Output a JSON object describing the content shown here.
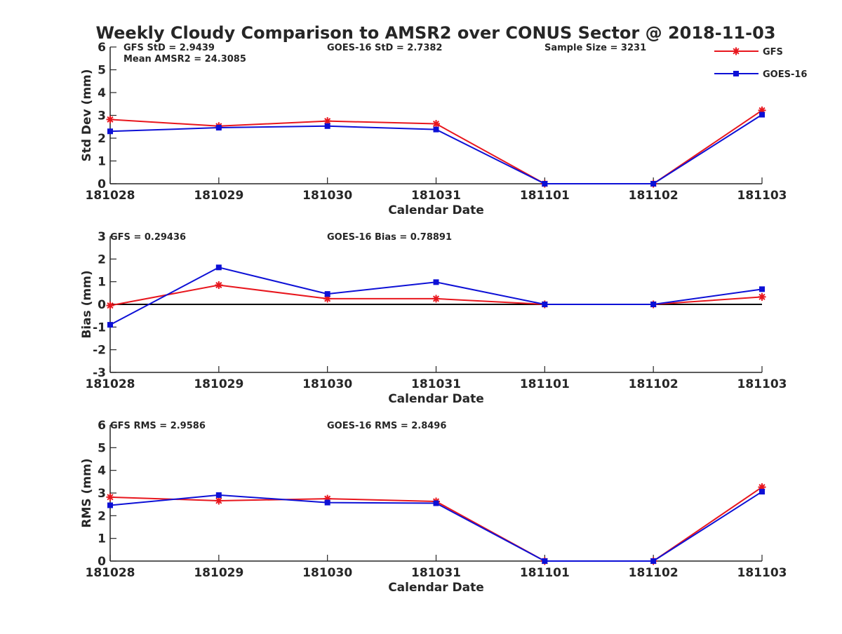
{
  "title": "Weekly Cloudy Comparison to AMSR2 over CONUS Sector @ 2018-11-03",
  "colors": {
    "gfs": "#e8161d",
    "goes": "#0d10d6",
    "axis": "#262626",
    "zero": "#000000"
  },
  "legend": {
    "placement": "top-right",
    "items": [
      {
        "label": "GFS",
        "color": "#e8161d",
        "marker": "asterisk"
      },
      {
        "label": "GOES-16",
        "color": "#0d10d6",
        "marker": "square"
      }
    ]
  },
  "chart_data": [
    {
      "type": "line",
      "xlabel": "Calendar Date",
      "ylabel": "Std Dev (mm)",
      "categories": [
        "181028",
        "181029",
        "181030",
        "181031",
        "181101",
        "181102",
        "181103"
      ],
      "ylim": [
        0,
        6
      ],
      "yticks": [
        0,
        1,
        2,
        3,
        4,
        5,
        6
      ],
      "zero_line": false,
      "annotations": [
        "GFS StD = 2.9439",
        "Mean AMSR2 = 24.3085",
        "GOES-16 StD = 2.7382",
        "Sample Size = 3231"
      ],
      "series": [
        {
          "name": "GFS",
          "values": [
            2.82,
            2.53,
            2.75,
            2.63,
            0,
            0,
            3.22
          ]
        },
        {
          "name": "GOES-16",
          "values": [
            2.3,
            2.46,
            2.53,
            2.38,
            0,
            0,
            3.03
          ]
        }
      ]
    },
    {
      "type": "line",
      "xlabel": "Calendar Date",
      "ylabel": "Bias (mm)",
      "categories": [
        "181028",
        "181029",
        "181030",
        "181031",
        "181101",
        "181102",
        "181103"
      ],
      "ylim": [
        -3,
        3
      ],
      "yticks": [
        -3,
        -2,
        -1,
        0,
        1,
        2,
        3
      ],
      "zero_line": true,
      "annotations": [
        "GFS = 0.29436",
        "GOES-16 Bias  = 0.78891"
      ],
      "series": [
        {
          "name": "GFS",
          "values": [
            -0.05,
            0.85,
            0.25,
            0.25,
            0,
            0,
            0.33
          ]
        },
        {
          "name": "GOES-16",
          "values": [
            -0.9,
            1.63,
            0.46,
            0.98,
            0,
            0,
            0.67
          ]
        }
      ]
    },
    {
      "type": "line",
      "xlabel": "Calendar Date",
      "ylabel": "RMS (mm)",
      "categories": [
        "181028",
        "181029",
        "181030",
        "181031",
        "181101",
        "181102",
        "181103"
      ],
      "ylim": [
        0,
        6
      ],
      "yticks": [
        0,
        1,
        2,
        3,
        4,
        5,
        6
      ],
      "zero_line": false,
      "annotations": [
        "GFS RMS = 2.9586",
        "GOES-16 RMS = 2.8496"
      ],
      "series": [
        {
          "name": "GFS",
          "values": [
            2.82,
            2.66,
            2.75,
            2.63,
            0,
            0,
            3.26
          ]
        },
        {
          "name": "GOES-16",
          "values": [
            2.46,
            2.91,
            2.58,
            2.55,
            0,
            0,
            3.06
          ]
        }
      ]
    }
  ]
}
